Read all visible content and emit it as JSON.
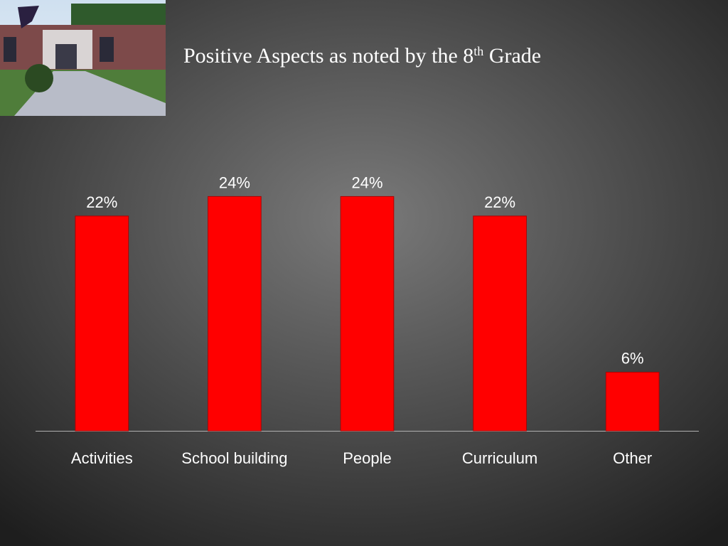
{
  "chart_data": {
    "type": "bar",
    "title": [
      "Positive Aspects as noted by the 8",
      "th",
      " Grade"
    ],
    "categories": [
      "Activities",
      "School building",
      "People",
      "Curriculum",
      "Other"
    ],
    "values": [
      22,
      24,
      24,
      22,
      6
    ],
    "value_labels": [
      "22%",
      "24%",
      "24%",
      "22%",
      "6%"
    ],
    "color": "#ff0000",
    "ylim": [
      0,
      30
    ]
  }
}
